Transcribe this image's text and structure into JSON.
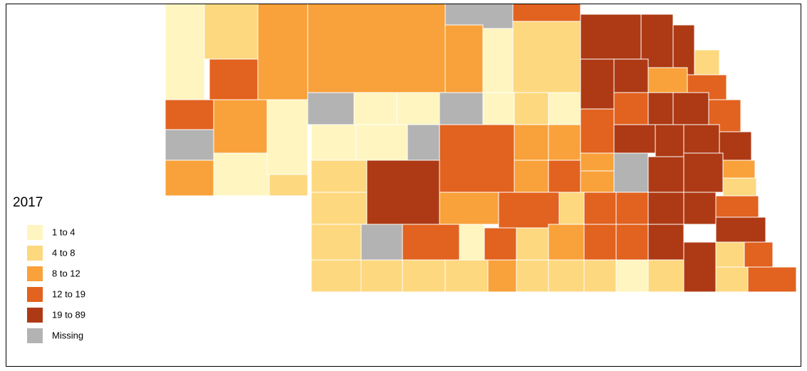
{
  "legend": {
    "title": "2017",
    "items": [
      {
        "label": "1 to 4",
        "color": "#fff5c0"
      },
      {
        "label": "4 to 8",
        "color": "#fdd87f"
      },
      {
        "label": "8 to 12",
        "color": "#f9a13a"
      },
      {
        "label": "12 to 19",
        "color": "#e2621f"
      },
      {
        "label": "19 to 89",
        "color": "#ad3a14"
      },
      {
        "label": "Missing",
        "color": "#b3b3b3"
      }
    ]
  }
}
